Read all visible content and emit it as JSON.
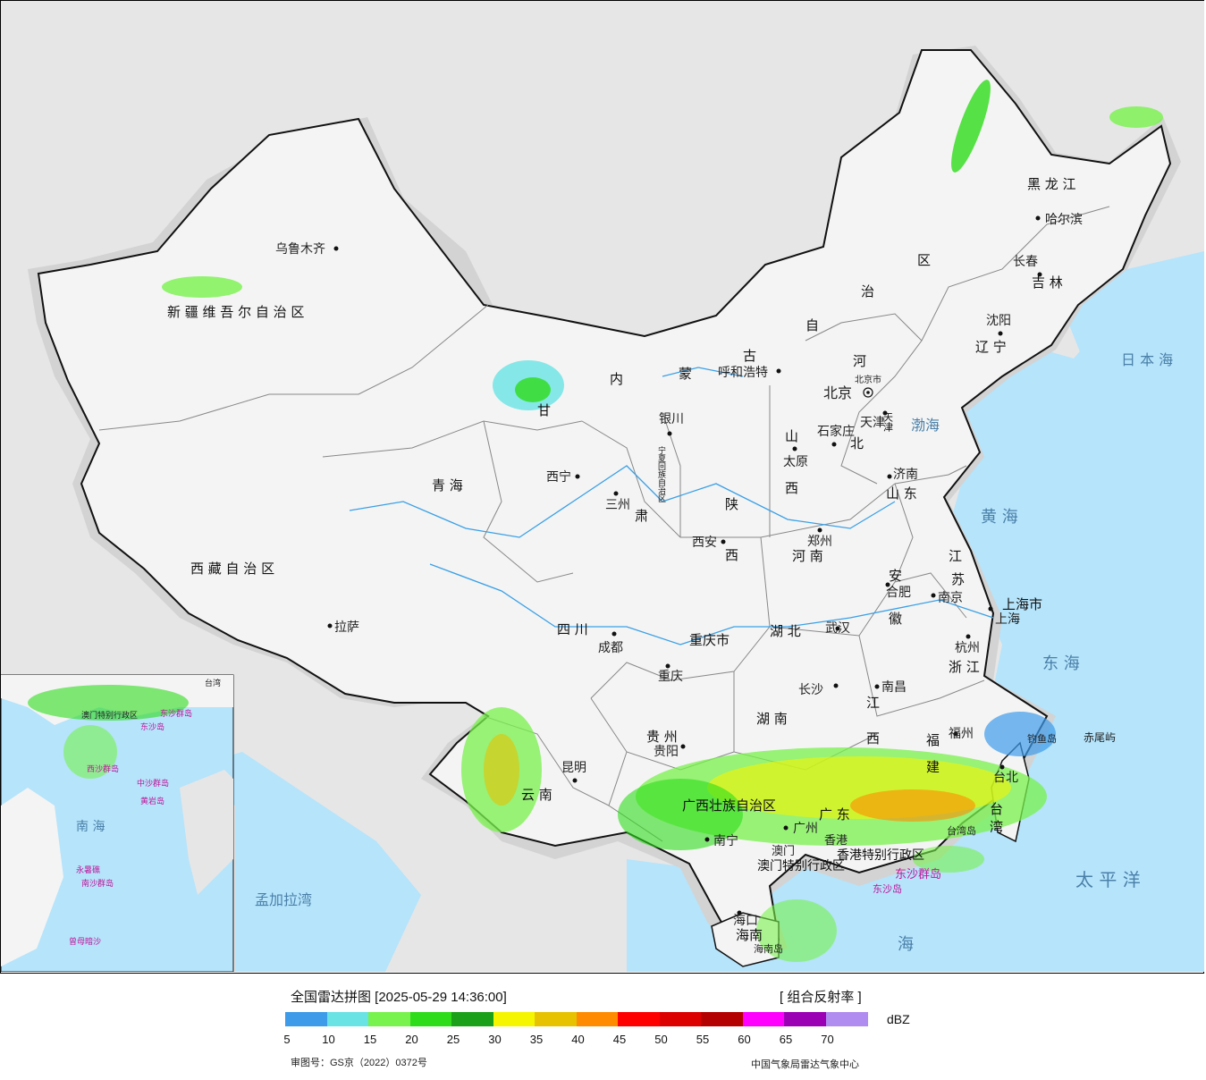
{
  "map": {
    "cities": [
      {
        "id": "urumqi",
        "label": "乌鲁木齐"
      },
      {
        "id": "lhasa",
        "label": "拉萨"
      },
      {
        "id": "xining",
        "label": "西宁"
      },
      {
        "id": "lanzhou",
        "label": "三州"
      },
      {
        "id": "yinchuan",
        "label": "银川"
      },
      {
        "id": "hohhot",
        "label": "呼和浩特"
      },
      {
        "id": "beijing",
        "label": "北京"
      },
      {
        "id": "beijingcity",
        "label": "北京市"
      },
      {
        "id": "tianjin",
        "label": "天津"
      },
      {
        "id": "shijiazhuang",
        "label": "石家庄"
      },
      {
        "id": "taiyuan",
        "label": "太原"
      },
      {
        "id": "jinan",
        "label": "济南"
      },
      {
        "id": "zhengzhou",
        "label": "郑州"
      },
      {
        "id": "xian",
        "label": "西安"
      },
      {
        "id": "chengdu",
        "label": "成都"
      },
      {
        "id": "chongqing",
        "label": "重庆"
      },
      {
        "id": "wuhan",
        "label": "武汉"
      },
      {
        "id": "hefei",
        "label": "合肥"
      },
      {
        "id": "nanjing",
        "label": "南京"
      },
      {
        "id": "shanghai",
        "label": "上海"
      },
      {
        "id": "hangzhou",
        "label": "杭州"
      },
      {
        "id": "nanchang",
        "label": "南昌"
      },
      {
        "id": "changsha",
        "label": "长沙"
      },
      {
        "id": "guiyang",
        "label": "贵阳"
      },
      {
        "id": "kunming",
        "label": "昆明"
      },
      {
        "id": "nanning",
        "label": "南宁"
      },
      {
        "id": "guangzhou",
        "label": "广州"
      },
      {
        "id": "fuzhou",
        "label": "福州"
      },
      {
        "id": "taipei",
        "label": "台北"
      },
      {
        "id": "haikou",
        "label": "海口"
      },
      {
        "id": "shenyang",
        "label": "沈阳"
      },
      {
        "id": "changchun",
        "label": "长春"
      },
      {
        "id": "harbin",
        "label": "哈尔滨"
      },
      {
        "id": "macao",
        "label": "澳门"
      },
      {
        "id": "hongkong",
        "label": "香港"
      }
    ],
    "provinces": [
      {
        "id": "xinjiang",
        "label": "新 疆 维 吾 尔 自 治 区"
      },
      {
        "id": "xizang",
        "label": "西 藏 自 治 区"
      },
      {
        "id": "qinghai",
        "label": "青   海"
      },
      {
        "id": "gansu",
        "label": "甘"
      },
      {
        "id": "gansu2",
        "label": "肃"
      },
      {
        "id": "nm1",
        "label": "内"
      },
      {
        "id": "nm2",
        "label": "蒙"
      },
      {
        "id": "nm3",
        "label": "古"
      },
      {
        "id": "nm4",
        "label": "自"
      },
      {
        "id": "nm5",
        "label": "治"
      },
      {
        "id": "nm6",
        "label": "区"
      },
      {
        "id": "ningxia",
        "label": "宁夏回族自治区"
      },
      {
        "id": "shaanxi1",
        "label": "陕"
      },
      {
        "id": "shaanxi2",
        "label": "西"
      },
      {
        "id": "shanxi1",
        "label": "山"
      },
      {
        "id": "shanxi2",
        "label": "西"
      },
      {
        "id": "hebei1",
        "label": "河"
      },
      {
        "id": "hebei2",
        "label": "北"
      },
      {
        "id": "shandong",
        "label": "山 东"
      },
      {
        "id": "henan",
        "label": "河 南"
      },
      {
        "id": "sichuan",
        "label": "四   川"
      },
      {
        "id": "chongqingshi",
        "label": "重庆市"
      },
      {
        "id": "hubei",
        "label": "湖  北"
      },
      {
        "id": "anhui1",
        "label": "安"
      },
      {
        "id": "anhui2",
        "label": "徽"
      },
      {
        "id": "jiangsu1",
        "label": "江"
      },
      {
        "id": "jiangsu2",
        "label": "苏"
      },
      {
        "id": "shanghaishi",
        "label": "上海市"
      },
      {
        "id": "zhejiang",
        "label": "浙 江"
      },
      {
        "id": "jiangxi1",
        "label": "江"
      },
      {
        "id": "jiangxi2",
        "label": "西"
      },
      {
        "id": "hunan",
        "label": "湖  南"
      },
      {
        "id": "guizhou",
        "label": "贵  州"
      },
      {
        "id": "yunnan",
        "label": "云   南"
      },
      {
        "id": "guangxi",
        "label": "广西壮族自治区"
      },
      {
        "id": "guangdong",
        "label": "广 东"
      },
      {
        "id": "fujian1",
        "label": "福"
      },
      {
        "id": "fujian2",
        "label": "建"
      },
      {
        "id": "taiwan",
        "label": "台 湾"
      },
      {
        "id": "hainan",
        "label": "海南"
      },
      {
        "id": "liaoning",
        "label": "辽 宁"
      },
      {
        "id": "jilin",
        "label": "吉 林"
      },
      {
        "id": "heilongjiang",
        "label": "黑 龙 江"
      },
      {
        "id": "tianjinshi",
        "label": "天津"
      },
      {
        "id": "hksar",
        "label": "香港特别行政区"
      },
      {
        "id": "macaosar",
        "label": "澳门特别行政区"
      }
    ],
    "seas": [
      {
        "id": "bohai",
        "label": "渤海"
      },
      {
        "id": "huanghai",
        "label": "黄 海"
      },
      {
        "id": "donghai",
        "label": "东 海"
      },
      {
        "id": "taipingyang",
        "label": "太 平 洋"
      },
      {
        "id": "riben",
        "label": "日 本 海"
      },
      {
        "id": "mengjiala",
        "label": "孟加拉湾"
      },
      {
        "id": "nanhai",
        "label": "海"
      },
      {
        "id": "nanhai_inset",
        "label": "南  海"
      }
    ],
    "islands": [
      {
        "id": "diaoyu",
        "label": "钓鱼岛"
      },
      {
        "id": "chiwei",
        "label": "赤尾屿"
      },
      {
        "id": "dongsha_q",
        "label": "东沙群岛"
      },
      {
        "id": "dongsha",
        "label": "东沙岛"
      },
      {
        "id": "taiwan_dao",
        "label": "台湾岛"
      },
      {
        "id": "hainan_dao",
        "label": "海南岛"
      }
    ],
    "inset_labels": [
      {
        "id": "inset_tw",
        "label": "台湾"
      },
      {
        "id": "inset_dsq",
        "label": "东沙群岛"
      },
      {
        "id": "inset_ds",
        "label": "东沙岛"
      },
      {
        "id": "inset_xs",
        "label": "西沙群岛"
      },
      {
        "id": "inset_zs",
        "label": "中沙群岛"
      },
      {
        "id": "inset_hy",
        "label": "黄岩岛"
      },
      {
        "id": "inset_yl",
        "label": "永暑礁"
      },
      {
        "id": "inset_ns",
        "label": "南沙群岛"
      },
      {
        "id": "inset_zm",
        "label": "曾母暗沙"
      },
      {
        "id": "inset_sar",
        "label": "澳门特别行政区"
      }
    ],
    "colors": {
      "land": "#f4f4f4",
      "outside": "#e6e6e6",
      "sea": "#b5e4fb",
      "border": "#111111",
      "province_border": "#888888",
      "river": "#3aa0e6"
    }
  },
  "legend": {
    "title": "全国雷达拼图 [2025-05-29 14:36:00]",
    "product": "[ 组合反射率 ]",
    "unit": "dBZ",
    "ticks": [
      "5",
      "10",
      "15",
      "20",
      "25",
      "30",
      "35",
      "40",
      "45",
      "50",
      "55",
      "60",
      "65",
      "70"
    ],
    "colors": [
      "#3d9be9",
      "#6ae3e5",
      "#78f24c",
      "#2edc1a",
      "#1ba01a",
      "#f5f500",
      "#e6c200",
      "#ff8c00",
      "#ff0000",
      "#dc0000",
      "#b40000",
      "#ff00ff",
      "#9b00b4",
      "#b08cf0"
    ],
    "approval": "审图号：GS京（2022）0372号",
    "source": "中国气象局雷达气象中心"
  }
}
